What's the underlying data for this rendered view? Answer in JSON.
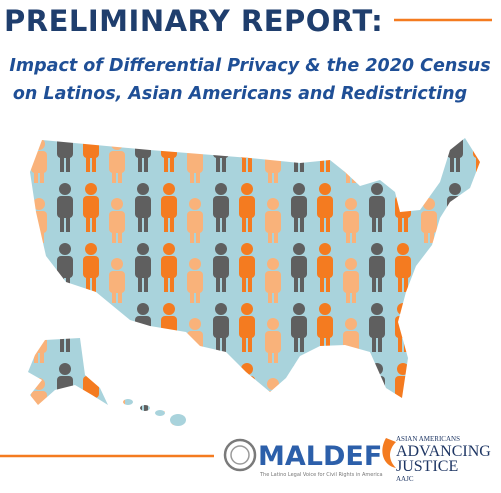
{
  "header": {
    "title": "PRELIMINARY REPORT:",
    "subtitle_lines": [
      "Impact of Differential Privacy & the 2020 Census",
      "on Latinos, Asian Americans and Redistricting"
    ]
  },
  "footer": {
    "maldef": {
      "name": "MALDEF",
      "tagline": "The Latino Legal Voice for Civil Rights in America"
    },
    "aajc": {
      "line1": "ASIAN AMERICANS",
      "line2": "ADVANCING",
      "line3": "JUSTICE",
      "line4": "AAJC"
    }
  }
}
